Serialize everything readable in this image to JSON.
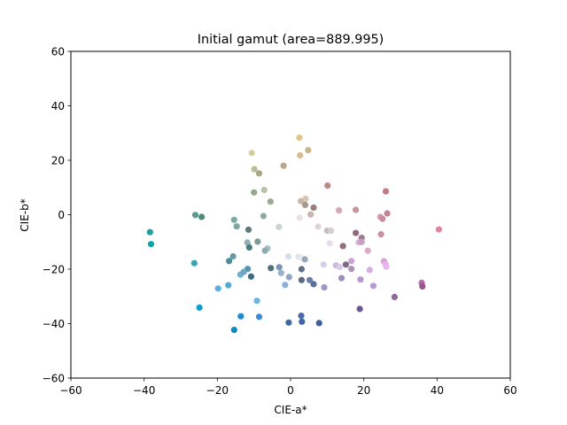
{
  "chart_data": {
    "type": "scatter",
    "title": "Initial gamut (area=889.995)",
    "xlabel": "CIE-a*",
    "ylabel": "CIE-b*",
    "xlim": [
      -60,
      60
    ],
    "ylim": [
      -60,
      60
    ],
    "xticks": [
      -60,
      -40,
      -20,
      0,
      20,
      40,
      60
    ],
    "yticks": [
      -60,
      -40,
      -20,
      0,
      20,
      40,
      60
    ],
    "xtick_labels": [
      "−60",
      "−40",
      "−20",
      "0",
      "20",
      "40",
      "60"
    ],
    "ytick_labels": [
      "−60",
      "−40",
      "−20",
      "0",
      "20",
      "40",
      "60"
    ],
    "grid": false,
    "points": [
      {
        "x": 2.4,
        "y": 28.3,
        "color": "#e3c48d"
      },
      {
        "x": 4.8,
        "y": 23.7,
        "color": "#c9b48c"
      },
      {
        "x": 2.6,
        "y": 21.8,
        "color": "#d6bd8e"
      },
      {
        "x": -10.6,
        "y": 22.7,
        "color": "#cfd19c"
      },
      {
        "x": -1.9,
        "y": 18.0,
        "color": "#b8a784"
      },
      {
        "x": -9.9,
        "y": 16.7,
        "color": "#b7c092"
      },
      {
        "x": -8.6,
        "y": 15.2,
        "color": "#a9a681"
      },
      {
        "x": 10.1,
        "y": 10.7,
        "color": "#b98a86"
      },
      {
        "x": 26.0,
        "y": 8.6,
        "color": "#c17a86"
      },
      {
        "x": -7.2,
        "y": 9.1,
        "color": "#b3c5a6"
      },
      {
        "x": -10.0,
        "y": 8.2,
        "color": "#96a78b"
      },
      {
        "x": 4.1,
        "y": 5.9,
        "color": "#dac5b9"
      },
      {
        "x": 2.8,
        "y": 5.0,
        "color": "#c9b7a9"
      },
      {
        "x": -5.5,
        "y": 4.8,
        "color": "#9daa92"
      },
      {
        "x": 4.0,
        "y": 3.6,
        "color": "#a89a8a"
      },
      {
        "x": 6.3,
        "y": 2.6,
        "color": "#9a7f7b"
      },
      {
        "x": 13.2,
        "y": 1.6,
        "color": "#d8a8b1"
      },
      {
        "x": 17.8,
        "y": 1.8,
        "color": "#c8939b"
      },
      {
        "x": 26.4,
        "y": 0.5,
        "color": "#c58590"
      },
      {
        "x": 5.5,
        "y": 0.1,
        "color": "#c7b4ae"
      },
      {
        "x": -26.0,
        "y": -0.1,
        "color": "#569d8e"
      },
      {
        "x": -24.3,
        "y": -0.8,
        "color": "#4f8a78"
      },
      {
        "x": -7.4,
        "y": -0.5,
        "color": "#90aa9f"
      },
      {
        "x": 2.5,
        "y": -1.1,
        "color": "#e7e1e6"
      },
      {
        "x": 24.5,
        "y": -0.8,
        "color": "#d89aab"
      },
      {
        "x": 25.1,
        "y": -1.5,
        "color": "#c88ca1"
      },
      {
        "x": -15.4,
        "y": -1.9,
        "color": "#7cab9f"
      },
      {
        "x": 40.5,
        "y": -5.4,
        "color": "#e385a0"
      },
      {
        "x": -38.4,
        "y": -6.4,
        "color": "#20a0a0"
      },
      {
        "x": -14.7,
        "y": -4.3,
        "color": "#7aa5a0"
      },
      {
        "x": -3.2,
        "y": -4.5,
        "color": "#c9d3cf"
      },
      {
        "x": -11.5,
        "y": -5.5,
        "color": "#5f7d78"
      },
      {
        "x": 7.5,
        "y": -4.4,
        "color": "#ddd3dc"
      },
      {
        "x": 10.0,
        "y": -5.9,
        "color": "#c8bcc2"
      },
      {
        "x": 11.0,
        "y": -5.9,
        "color": "#d7cbd2"
      },
      {
        "x": 17.8,
        "y": -6.7,
        "color": "#8f6a7e"
      },
      {
        "x": 24.7,
        "y": -7.2,
        "color": "#c88ea8"
      },
      {
        "x": 19.4,
        "y": -8.5,
        "color": "#a07d8e"
      },
      {
        "x": -38.1,
        "y": -10.8,
        "color": "#0ba6ad"
      },
      {
        "x": -11.8,
        "y": -10.2,
        "color": "#92b0b4"
      },
      {
        "x": -9.0,
        "y": -9.9,
        "color": "#7f9a9b"
      },
      {
        "x": 10.7,
        "y": -10.5,
        "color": "#e5dcef"
      },
      {
        "x": 14.3,
        "y": -11.5,
        "color": "#93707e"
      },
      {
        "x": 18.6,
        "y": -10.1,
        "color": "#dcb1d7"
      },
      {
        "x": 19.4,
        "y": -10.0,
        "color": "#c4a2c0"
      },
      {
        "x": -11.3,
        "y": -12.0,
        "color": "#4d7b7c"
      },
      {
        "x": -6.3,
        "y": -12.4,
        "color": "#a8c1c4"
      },
      {
        "x": -7.0,
        "y": -13.2,
        "color": "#8eaab2"
      },
      {
        "x": 21.1,
        "y": -13.2,
        "color": "#dcaac6"
      },
      {
        "x": -15.7,
        "y": -15.3,
        "color": "#6a9aa0"
      },
      {
        "x": -0.6,
        "y": -15.3,
        "color": "#d1e0ec"
      },
      {
        "x": 2.2,
        "y": -15.5,
        "color": "#dfe3ef"
      },
      {
        "x": 3.1,
        "y": -15.8,
        "color": "#e9eaf3"
      },
      {
        "x": 3.9,
        "y": -16.4,
        "color": "#9aa8bc"
      },
      {
        "x": -16.8,
        "y": -17.0,
        "color": "#4d8d9b"
      },
      {
        "x": -26.3,
        "y": -17.8,
        "color": "#3ba2b2"
      },
      {
        "x": 16.6,
        "y": -17.0,
        "color": "#cba4d4"
      },
      {
        "x": 25.5,
        "y": -17.1,
        "color": "#d4a2d6"
      },
      {
        "x": 25.9,
        "y": -18.1,
        "color": "#e5b0e5"
      },
      {
        "x": 9.0,
        "y": -18.3,
        "color": "#d3d0ea"
      },
      {
        "x": 12.4,
        "y": -18.6,
        "color": "#c5bddc"
      },
      {
        "x": 13.4,
        "y": -19.2,
        "color": "#d8cbe9"
      },
      {
        "x": 15.1,
        "y": -18.3,
        "color": "#7c6a88"
      },
      {
        "x": 26.1,
        "y": -19.1,
        "color": "#e6b6ec"
      },
      {
        "x": -11.7,
        "y": -19.9,
        "color": "#5794b4"
      },
      {
        "x": -5.4,
        "y": -19.6,
        "color": "#4e7278"
      },
      {
        "x": -3.1,
        "y": -19.3,
        "color": "#7b95b4"
      },
      {
        "x": 3.0,
        "y": -20.0,
        "color": "#5f6e82"
      },
      {
        "x": 16.6,
        "y": -19.9,
        "color": "#ad92bd"
      },
      {
        "x": 21.6,
        "y": -20.3,
        "color": "#d3aee2"
      },
      {
        "x": -13.7,
        "y": -22.0,
        "color": "#70afce"
      },
      {
        "x": -12.8,
        "y": -21.0,
        "color": "#6fa5c2"
      },
      {
        "x": -10.8,
        "y": -22.7,
        "color": "#3e6a83"
      },
      {
        "x": -2.6,
        "y": -21.4,
        "color": "#9ab0cf"
      },
      {
        "x": -0.4,
        "y": -22.9,
        "color": "#8ea4c8"
      },
      {
        "x": 3.0,
        "y": -24.0,
        "color": "#5a6a89"
      },
      {
        "x": 5.2,
        "y": -24.0,
        "color": "#6a7ea6"
      },
      {
        "x": 6.3,
        "y": -25.5,
        "color": "#5c6d9b"
      },
      {
        "x": 13.9,
        "y": -23.3,
        "color": "#9d8ec0"
      },
      {
        "x": 19.1,
        "y": -23.8,
        "color": "#b49ad0"
      },
      {
        "x": 35.8,
        "y": -25.0,
        "color": "#b96aa8"
      },
      {
        "x": -1.5,
        "y": -25.8,
        "color": "#8ab0d8"
      },
      {
        "x": -17.0,
        "y": -25.9,
        "color": "#52a9d6"
      },
      {
        "x": 36.0,
        "y": -26.3,
        "color": "#9a5590"
      },
      {
        "x": -19.8,
        "y": -27.1,
        "color": "#5bb0e0"
      },
      {
        "x": 9.2,
        "y": -26.7,
        "color": "#9c95c8"
      },
      {
        "x": 22.6,
        "y": -26.1,
        "color": "#b49ad6"
      },
      {
        "x": 28.4,
        "y": -30.2,
        "color": "#8e6a98"
      },
      {
        "x": -9.2,
        "y": -31.6,
        "color": "#6db5e5"
      },
      {
        "x": -24.9,
        "y": -34.1,
        "color": "#0f9bd6"
      },
      {
        "x": 18.9,
        "y": -34.6,
        "color": "#6a5a92"
      },
      {
        "x": -13.6,
        "y": -37.3,
        "color": "#1e8ad0"
      },
      {
        "x": -8.6,
        "y": -37.5,
        "color": "#3c8ad0"
      },
      {
        "x": 2.9,
        "y": -37.1,
        "color": "#4a6ba8"
      },
      {
        "x": -0.5,
        "y": -39.6,
        "color": "#3e6aa8"
      },
      {
        "x": 3.1,
        "y": -39.3,
        "color": "#3c66a6"
      },
      {
        "x": 7.8,
        "y": -39.8,
        "color": "#3b5e9c"
      },
      {
        "x": -15.4,
        "y": -42.3,
        "color": "#1287c8"
      }
    ]
  }
}
